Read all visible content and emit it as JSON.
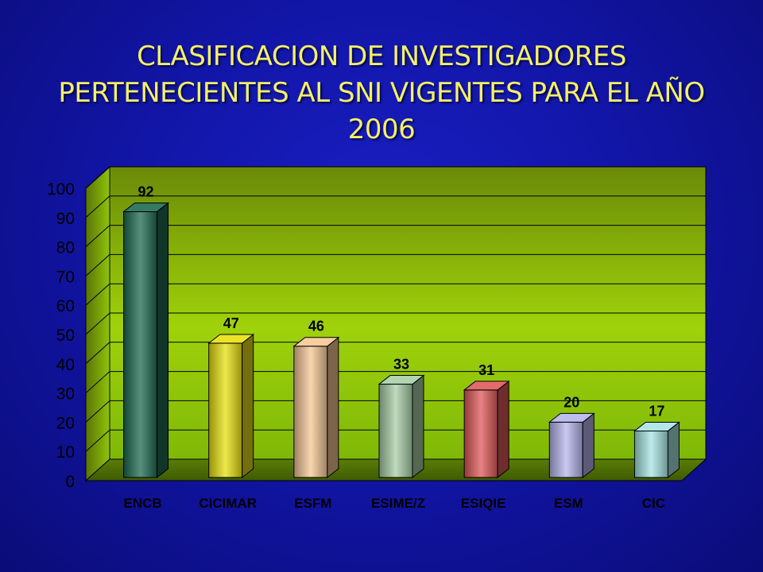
{
  "chart_data": {
    "type": "bar",
    "title": "CLASIFICACION DE INVESTIGADORES PERTENECIENTES AL SNI  VIGENTES PARA EL AÑO  2006",
    "categories": [
      "ENCB",
      "CICIMAR",
      "ESFM",
      "ESIME/Z",
      "ESIQIE",
      "ESM",
      "CIC"
    ],
    "values": [
      92,
      47,
      46,
      33,
      31,
      20,
      17
    ],
    "ylim": [
      0,
      100
    ],
    "yticks": [
      0,
      10,
      20,
      30,
      40,
      50,
      60,
      70,
      80,
      90,
      100
    ],
    "grid": true,
    "bar_colors": [
      "#1f6b52",
      "#e8e010",
      "#f6c896",
      "#a8cfa8",
      "#e05a5a",
      "#b6b6ec",
      "#a8e4e4"
    ]
  }
}
